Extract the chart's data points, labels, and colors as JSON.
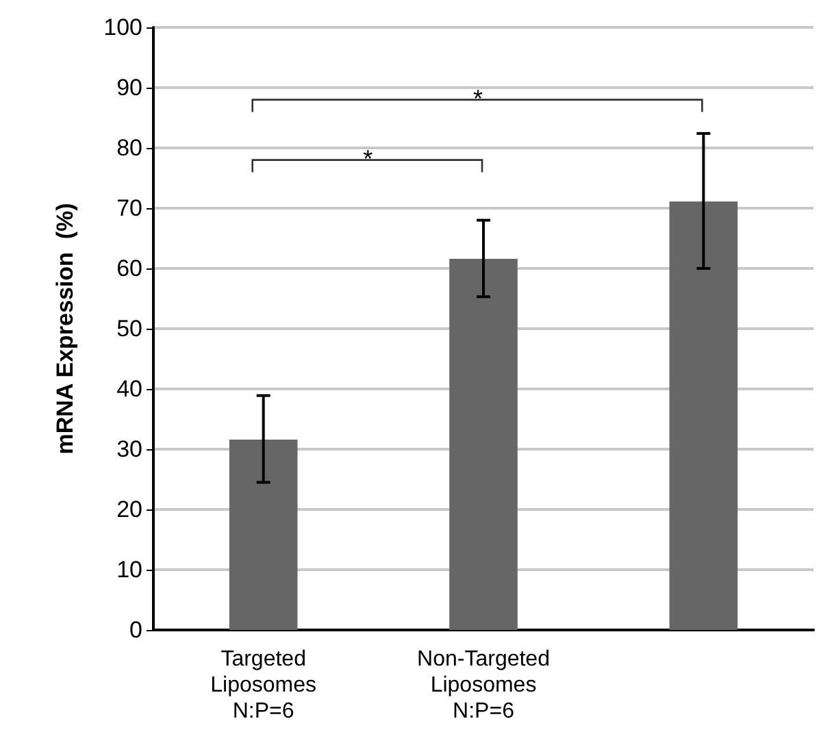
{
  "chart_data": {
    "type": "bar",
    "ylabel": "mRNA Expression  (%)",
    "categories": [
      "Targeted\nLiposomes\nN:P=6",
      "Non-Targeted\nLiposomes\nN:P=6",
      null
    ],
    "values": [
      31.6,
      61.6,
      71.1
    ],
    "errors": [
      [
        24.5,
        38.9
      ],
      [
        55.3,
        68.0
      ],
      [
        60.0,
        82.4
      ]
    ],
    "color": "#666666",
    "ylim": [
      0,
      100
    ],
    "yticks": [
      0,
      10,
      20,
      30,
      40,
      50,
      60,
      70,
      80,
      90,
      100
    ],
    "grid": "y",
    "annotations": [
      "*",
      "*"
    ]
  }
}
